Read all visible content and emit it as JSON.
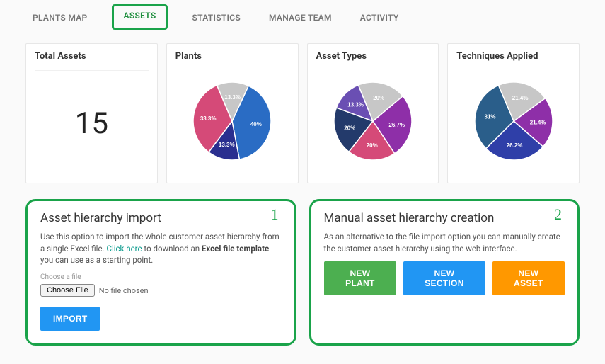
{
  "tabs": {
    "items": [
      {
        "label": "PLANTS MAP",
        "active": false
      },
      {
        "label": "ASSETS",
        "active": true
      },
      {
        "label": "STATISTICS",
        "active": false
      },
      {
        "label": "MANAGE TEAM",
        "active": false
      },
      {
        "label": "ACTIVITY",
        "active": false
      }
    ]
  },
  "summary": {
    "total_assets": {
      "title": "Total Assets",
      "value": "15"
    },
    "plants_chart": {
      "title": "Plants",
      "type": "pie",
      "slices": [
        {
          "label": "40%",
          "value": 40,
          "color": "#2a6cc4"
        },
        {
          "label": "13.3%",
          "value": 13.3,
          "color": "#2a2f8f"
        },
        {
          "label": "33.3%",
          "value": 33.3,
          "color": "#d54a78"
        },
        {
          "label": "13.3%",
          "value": 13.3,
          "color": "#c7c7c7"
        }
      ],
      "start_angle": -65,
      "label_fontsize": 8,
      "background_color": "#ffffff"
    },
    "asset_types_chart": {
      "title": "Asset Types",
      "type": "pie",
      "slices": [
        {
          "label": "26.7%",
          "value": 26.7,
          "color": "#8e2fa8"
        },
        {
          "label": "20%",
          "value": 20,
          "color": "#d54a78"
        },
        {
          "label": "20%",
          "value": 20,
          "color": "#233a6b"
        },
        {
          "label": "13.3%",
          "value": 13.3,
          "color": "#6a4fb3"
        },
        {
          "label": "20%",
          "value": 20,
          "color": "#c7c7c7"
        }
      ],
      "start_angle": -40,
      "label_fontsize": 8,
      "background_color": "#ffffff"
    },
    "techniques_chart": {
      "title": "Techniques Applied",
      "type": "pie",
      "slices": [
        {
          "label": "21.4%",
          "value": 21.4,
          "color": "#8e2fa8"
        },
        {
          "label": "26.2%",
          "value": 26.2,
          "color": "#2f3fa8"
        },
        {
          "label": "31%",
          "value": 31,
          "color": "#2a5e8a"
        },
        {
          "label": "21.4%",
          "value": 21.4,
          "color": "#c7c7c7"
        }
      ],
      "start_angle": -36,
      "label_fontsize": 8,
      "background_color": "#ffffff"
    }
  },
  "import_panel": {
    "tag": "1",
    "title": "Asset hierarchy import",
    "text_pre": "Use this option to import the whole customer asset hierarchy from a single Excel file. ",
    "link_text": "Click here",
    "text_mid": " to download an ",
    "bold_text": "Excel file template",
    "text_post": " you can use as a starting point.",
    "choose_label": "Choose a file",
    "choose_button": "Choose File",
    "file_status": "No file chosen",
    "import_button": "IMPORT"
  },
  "manual_panel": {
    "tag": "2",
    "title": "Manual asset hierarchy creation",
    "text": "As an alternative to the file import option you can manually create the customer asset hierarchy using the web interface.",
    "buttons": {
      "new_plant": "NEW PLANT",
      "new_section": "NEW SECTION",
      "new_asset": "NEW ASSET"
    }
  }
}
